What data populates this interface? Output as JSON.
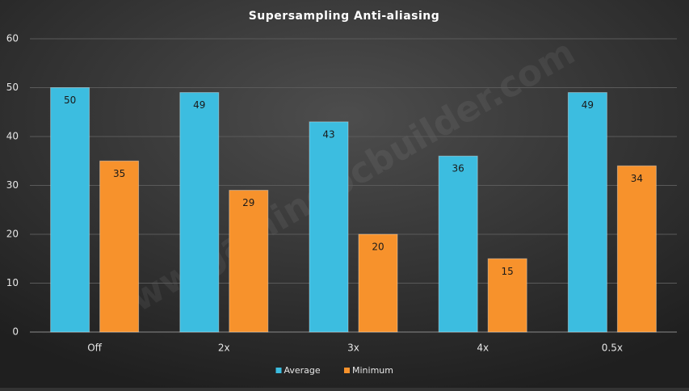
{
  "chart_data": {
    "type": "bar",
    "title": "Supersampling Anti-aliasing",
    "watermark": "www.gamingpcbuilder.com",
    "categories": [
      "Off",
      "2x",
      "3x",
      "4x",
      "0.5x"
    ],
    "series": [
      {
        "name": "Average",
        "color": "#3cbde0",
        "values": [
          50,
          49,
          43,
          36,
          49
        ]
      },
      {
        "name": "Minimum",
        "color": "#f7922c",
        "values": [
          35,
          29,
          20,
          15,
          34
        ]
      }
    ],
    "ylim": [
      0,
      60
    ],
    "yticks": [
      0,
      10,
      20,
      30,
      40,
      50,
      60
    ],
    "grid": true,
    "legend": "bottom",
    "data_labels": true
  }
}
